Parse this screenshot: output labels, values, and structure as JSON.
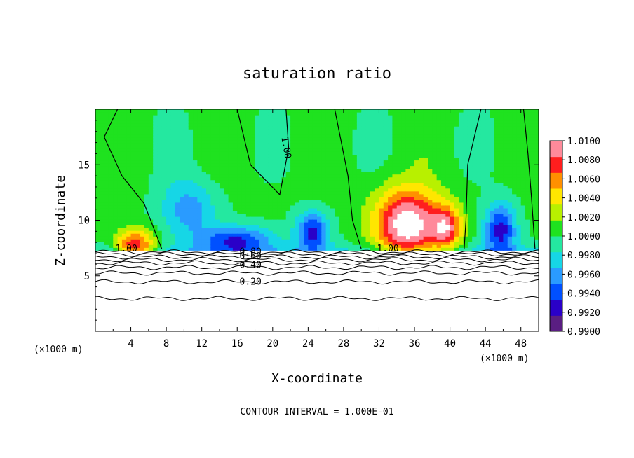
{
  "chart_data": {
    "type": "heatmap",
    "title": "saturation ratio",
    "xlabel": "X-coordinate",
    "ylabel": "Z-coordinate",
    "x_unit_left": "(×1000 m)",
    "x_unit_right": "(×1000 m)",
    "xlim": [
      0,
      50
    ],
    "ylim": [
      0,
      20
    ],
    "x_ticks": [
      4,
      8,
      12,
      16,
      20,
      24,
      28,
      32,
      36,
      40,
      44,
      48
    ],
    "y_ticks": [
      5,
      10,
      15
    ],
    "note": "CONTOUR INTERVAL = 1.000E-01",
    "colorbar": {
      "min": 0.99,
      "max": 1.01,
      "labels": [
        "1.0100",
        "1.0080",
        "1.0060",
        "1.0040",
        "1.0020",
        "1.0000",
        "0.9980",
        "0.9960",
        "0.9940",
        "0.9920",
        "0.9900"
      ],
      "colors": [
        "#5a1e82",
        "#2a00c8",
        "#0050ff",
        "#2a9bff",
        "#16d6e6",
        "#24e8a0",
        "#1fe21f",
        "#b8f000",
        "#ffe600",
        "#ff9000",
        "#ff1e1e",
        "#ff8a9a"
      ]
    },
    "contour_labels": [
      {
        "text": "1.00",
        "x": 3.5,
        "y": 7.2
      },
      {
        "text": "1.00",
        "x": 21.2,
        "y": 16.5,
        "rotate": 80
      },
      {
        "text": "1.00",
        "x": 33.0,
        "y": 7.2
      },
      {
        "text": "0.80",
        "x": 17.5,
        "y": 6.9
      },
      {
        "text": "0.60",
        "x": 17.5,
        "y": 6.5
      },
      {
        "text": "0.40",
        "x": 17.5,
        "y": 5.7
      },
      {
        "text": "0.20",
        "x": 17.5,
        "y": 4.2
      }
    ],
    "cloud_top": 7.3,
    "below_cloud_contours": [
      {
        "level": 0.9,
        "y": 7.15
      },
      {
        "level": 0.8,
        "y": 6.95
      },
      {
        "level": 0.7,
        "y": 6.7
      },
      {
        "level": 0.6,
        "y": 6.45
      },
      {
        "level": 0.5,
        "y": 6.15
      },
      {
        "level": 0.4,
        "y": 5.75
      },
      {
        "level": 0.3,
        "y": 5.25
      },
      {
        "level": 0.2,
        "y": 4.45
      },
      {
        "level": 0.1,
        "y": 2.95
      }
    ],
    "features": [
      {
        "kind": "warm-cell",
        "x": 4.5,
        "y": 7.6,
        "sx": 2.2,
        "sy": 1.5,
        "amp": 0.0085
      },
      {
        "kind": "warm-cell",
        "x": 35.2,
        "y": 9.6,
        "sx": 3.6,
        "sy": 3.2,
        "amp": 0.0115
      },
      {
        "kind": "warm-cell",
        "x": 39.6,
        "y": 9.3,
        "sx": 1.7,
        "sy": 2.0,
        "amp": 0.0075
      },
      {
        "kind": "dry-cell",
        "x": 10.5,
        "y": 11.0,
        "sx": 3.2,
        "sy": 2.8,
        "amp": -0.0045
      },
      {
        "kind": "dry-cell",
        "x": 16.0,
        "y": 8.2,
        "sx": 4.0,
        "sy": 1.3,
        "amp": -0.007
      },
      {
        "kind": "dry-cell",
        "x": 24.5,
        "y": 9.0,
        "sx": 1.9,
        "sy": 1.8,
        "amp": -0.0075
      },
      {
        "kind": "dry-cell",
        "x": 45.7,
        "y": 9.2,
        "sx": 1.8,
        "sy": 2.4,
        "amp": -0.0078
      }
    ]
  }
}
